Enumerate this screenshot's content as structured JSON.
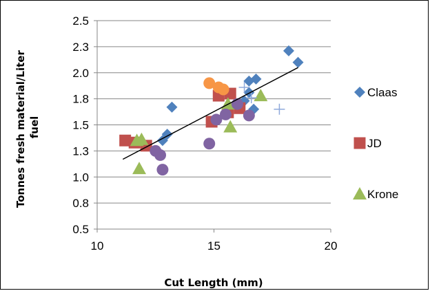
{
  "chart_data": {
    "type": "scatter",
    "title": "",
    "xlabel": "Cut Length (mm)",
    "ylabel": "Tonnes fresh material/Liter fuel",
    "xlim": [
      10,
      20
    ],
    "ylim": [
      0.5,
      2.5
    ],
    "x_ticks": [
      "10",
      "15",
      "20"
    ],
    "y_ticks": [
      "0.5",
      "0.8",
      "1.0",
      "1.3",
      "1.5",
      "1.8",
      "2.0",
      "2.3",
      "2.5"
    ],
    "grid": "horizontal",
    "legend_position": "right",
    "series": [
      {
        "name": "Claas",
        "marker": "diamond",
        "color": "#4F81BD",
        "points": [
          [
            12.8,
            1.35
          ],
          [
            13.0,
            1.41
          ],
          [
            13.2,
            1.67
          ],
          [
            16.3,
            1.73
          ],
          [
            16.5,
            1.81
          ],
          [
            16.5,
            1.92
          ],
          [
            16.7,
            1.65
          ],
          [
            16.8,
            1.94
          ],
          [
            18.2,
            2.21
          ],
          [
            18.6,
            2.1
          ]
        ]
      },
      {
        "name": "JD",
        "marker": "square",
        "color": "#C0504D",
        "points": [
          [
            11.2,
            1.35
          ],
          [
            11.6,
            1.33
          ],
          [
            12.1,
            1.3
          ],
          [
            14.9,
            1.53
          ],
          [
            15.2,
            1.78
          ],
          [
            15.6,
            1.62
          ],
          [
            15.7,
            1.8
          ],
          [
            16.1,
            1.66
          ]
        ]
      },
      {
        "name": "Krone",
        "marker": "triangle",
        "color": "#9BBB59",
        "points": [
          [
            11.8,
            1.08
          ],
          [
            11.7,
            1.35
          ],
          [
            11.9,
            1.36
          ],
          [
            15.6,
            1.7
          ],
          [
            15.7,
            1.48
          ],
          [
            17.0,
            1.78
          ]
        ]
      },
      {
        "name": "",
        "marker": "circle",
        "color": "#8064A2",
        "points": [
          [
            12.5,
            1.25
          ],
          [
            12.7,
            1.21
          ],
          [
            12.8,
            1.07
          ],
          [
            14.8,
            1.32
          ],
          [
            15.1,
            1.55
          ],
          [
            15.5,
            1.6
          ],
          [
            16.0,
            1.7
          ],
          [
            16.5,
            1.59
          ]
        ]
      },
      {
        "name": "",
        "marker": "circle",
        "color": "#F79646",
        "points": [
          [
            14.8,
            1.9
          ],
          [
            15.2,
            1.86
          ],
          [
            15.4,
            1.84
          ]
        ]
      },
      {
        "name": "",
        "marker": "plus",
        "color": "#8EA9DB",
        "points": [
          [
            16.3,
            1.86
          ],
          [
            16.6,
            1.76
          ],
          [
            17.8,
            1.65
          ]
        ]
      }
    ],
    "trendline": {
      "from": [
        11.1,
        1.17
      ],
      "to": [
        18.6,
        2.05
      ],
      "color": "#000000"
    }
  }
}
